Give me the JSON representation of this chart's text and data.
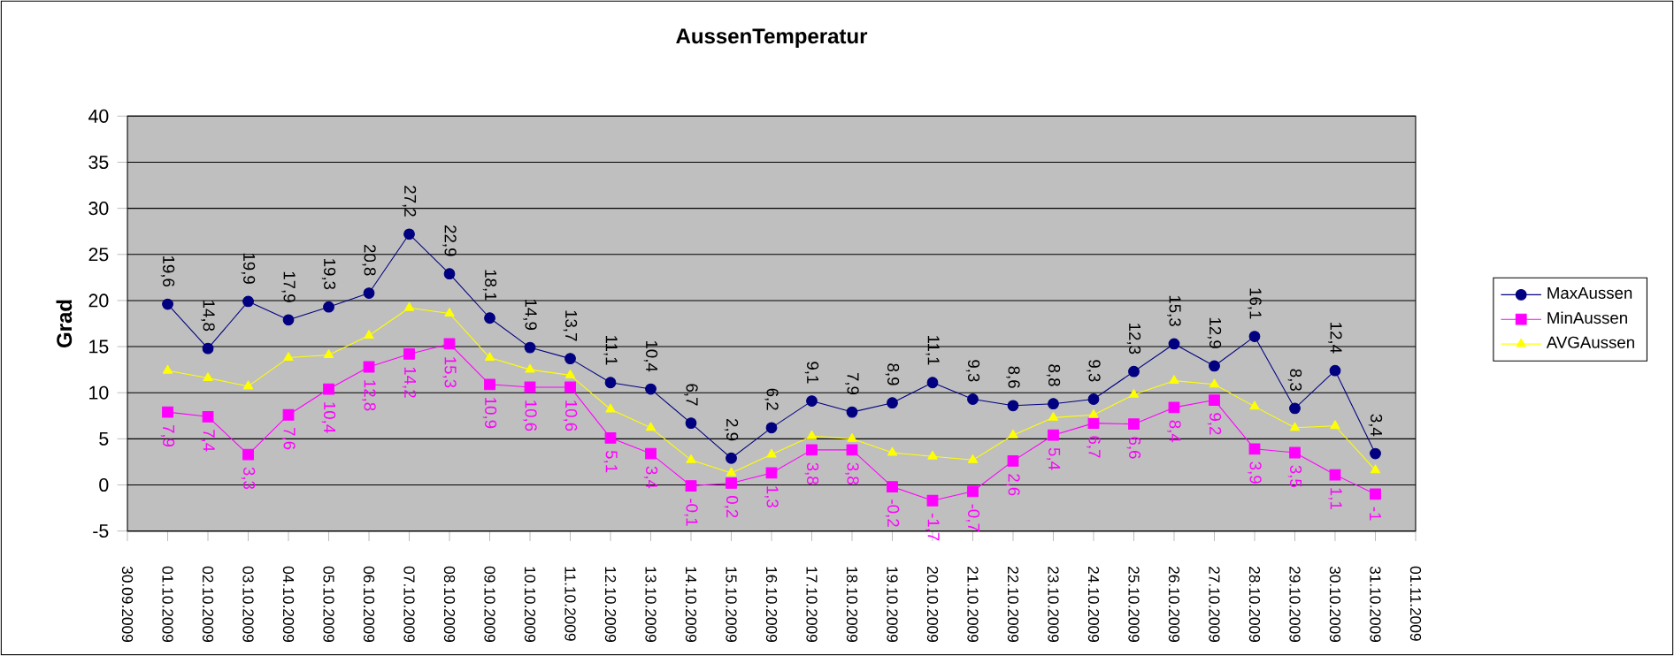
{
  "chart_data": {
    "type": "line",
    "title": "AussenTemperatur",
    "ylabel": "Grad",
    "x": [
      "2009-10-01",
      "2009-10-02",
      "2009-10-03",
      "2009-10-04",
      "2009-10-05",
      "2009-10-06",
      "2009-10-07",
      "2009-10-08",
      "2009-10-09",
      "2009-10-10",
      "2009-10-11",
      "2009-10-12",
      "2009-10-13",
      "2009-10-14",
      "2009-10-15",
      "2009-10-16",
      "2009-10-17",
      "2009-10-18",
      "2009-10-19",
      "2009-10-20",
      "2009-10-21",
      "2009-10-22",
      "2009-10-23",
      "2009-10-24",
      "2009-10-25",
      "2009-10-26",
      "2009-10-27",
      "2009-10-28",
      "2009-10-29",
      "2009-10-30",
      "2009-10-31"
    ],
    "series": [
      {
        "name": "MaxAussen",
        "color": "#000080",
        "marker": "circle",
        "values": [
          19.6,
          14.8,
          19.9,
          17.9,
          19.3,
          20.8,
          27.2,
          22.9,
          18.1,
          14.9,
          13.7,
          11.1,
          10.4,
          6.7,
          2.9,
          6.2,
          9.1,
          7.9,
          8.9,
          11.1,
          9.3,
          8.6,
          8.8,
          9.3,
          12.3,
          15.3,
          12.9,
          16.1,
          8.3,
          12.4,
          3.4
        ],
        "value_labels": [
          "19,6",
          "14,8",
          "19,9",
          "17,9",
          "19,3",
          "20,8",
          "27,2",
          "22,9",
          "18,1",
          "14,9",
          "13,7",
          "11,1",
          "10,4",
          "6,7",
          "2,9",
          "6,2",
          "9,1",
          "7,9",
          "8,9",
          "11,1",
          "9,3",
          "8,6",
          "8,8",
          "9,3",
          "12,3",
          "15,3",
          "12,9",
          "16,1",
          "8,3",
          "12,4",
          "3,4"
        ]
      },
      {
        "name": "MinAussen",
        "color": "#ff00ff",
        "marker": "square",
        "values": [
          7.9,
          7.4,
          3.3,
          7.6,
          10.4,
          12.8,
          14.2,
          15.3,
          10.9,
          10.6,
          10.6,
          5.1,
          3.4,
          -0.1,
          0.2,
          1.3,
          3.8,
          3.8,
          -0.2,
          -1.7,
          -0.7,
          2.6,
          5.4,
          6.7,
          6.6,
          8.4,
          9.2,
          3.9,
          3.5,
          1.1,
          -1
        ],
        "value_labels": [
          "7,9",
          "7,4",
          "3,3",
          "7,6",
          "10,4",
          "12,8",
          "14,2",
          "15,3",
          "10,9",
          "10,6",
          "10,6",
          "5,1",
          "3,4",
          "-0,1",
          "0,2",
          "1,3",
          "3,8",
          "3,8",
          "-0,2",
          "-1,7",
          "-0,7",
          "2,6",
          "5,4",
          "6,7",
          "6,6",
          "8,4",
          "9,2",
          "3,9",
          "3,5",
          "1,1",
          "-1"
        ]
      },
      {
        "name": "AVGAussen",
        "color": "#ffff00",
        "marker": "triangle",
        "values": [
          12.4,
          11.6,
          10.7,
          13.8,
          14.1,
          16.2,
          19.2,
          18.6,
          13.8,
          12.5,
          11.9,
          8.2,
          6.2,
          2.7,
          1.3,
          3.3,
          5.3,
          5.0,
          3.5,
          3.1,
          2.7,
          5.4,
          7.3,
          7.6,
          9.8,
          11.3,
          10.9,
          8.5,
          6.2,
          6.4,
          1.6
        ]
      }
    ],
    "xlim": [
      "2009-09-30",
      "2009-11-01"
    ],
    "xticks": [
      {
        "value": "2009-09-30",
        "label": "30.09.2009"
      },
      {
        "value": "2009-10-01",
        "label": "01.10.2009"
      },
      {
        "value": "2009-10-02",
        "label": "02.10.2009"
      },
      {
        "value": "2009-10-03",
        "label": "03.10.2009"
      },
      {
        "value": "2009-10-04",
        "label": "04.10.2009"
      },
      {
        "value": "2009-10-05",
        "label": "05.10.2009"
      },
      {
        "value": "2009-10-06",
        "label": "06.10.2009"
      },
      {
        "value": "2009-10-07",
        "label": "07.10.2009"
      },
      {
        "value": "2009-10-08",
        "label": "08.10.2009"
      },
      {
        "value": "2009-10-09",
        "label": "09.10.2009"
      },
      {
        "value": "2009-10-10",
        "label": "10.10.2009"
      },
      {
        "value": "2009-10-11",
        "label": "11.10.2009"
      },
      {
        "value": "2009-10-12",
        "label": "12.10.2009"
      },
      {
        "value": "2009-10-13",
        "label": "13.10.2009"
      },
      {
        "value": "2009-10-14",
        "label": "14.10.2009"
      },
      {
        "value": "2009-10-15",
        "label": "15.10.2009"
      },
      {
        "value": "2009-10-16",
        "label": "16.10.2009"
      },
      {
        "value": "2009-10-17",
        "label": "17.10.2009"
      },
      {
        "value": "2009-10-18",
        "label": "18.10.2009"
      },
      {
        "value": "2009-10-19",
        "label": "19.10.2009"
      },
      {
        "value": "2009-10-20",
        "label": "20.10.2009"
      },
      {
        "value": "2009-10-21",
        "label": "21.10.2009"
      },
      {
        "value": "2009-10-22",
        "label": "22.10.2009"
      },
      {
        "value": "2009-10-23",
        "label": "23.10.2009"
      },
      {
        "value": "2009-10-24",
        "label": "24.10.2009"
      },
      {
        "value": "2009-10-25",
        "label": "25.10.2009"
      },
      {
        "value": "2009-10-26",
        "label": "26.10.2009"
      },
      {
        "value": "2009-10-27",
        "label": "27.10.2009"
      },
      {
        "value": "2009-10-28",
        "label": "28.10.2009"
      },
      {
        "value": "2009-10-29",
        "label": "29.10.2009"
      },
      {
        "value": "2009-10-30",
        "label": "30.10.2009"
      },
      {
        "value": "2009-10-31",
        "label": "31.10.2009"
      },
      {
        "value": "2009-11-01",
        "label": "01.11.2009"
      }
    ],
    "ylim": [
      -5,
      40
    ],
    "yticks": [
      -5,
      0,
      5,
      10,
      15,
      20,
      25,
      30,
      35,
      40
    ],
    "grid": "y",
    "legend": "right",
    "line_style": "solid"
  }
}
